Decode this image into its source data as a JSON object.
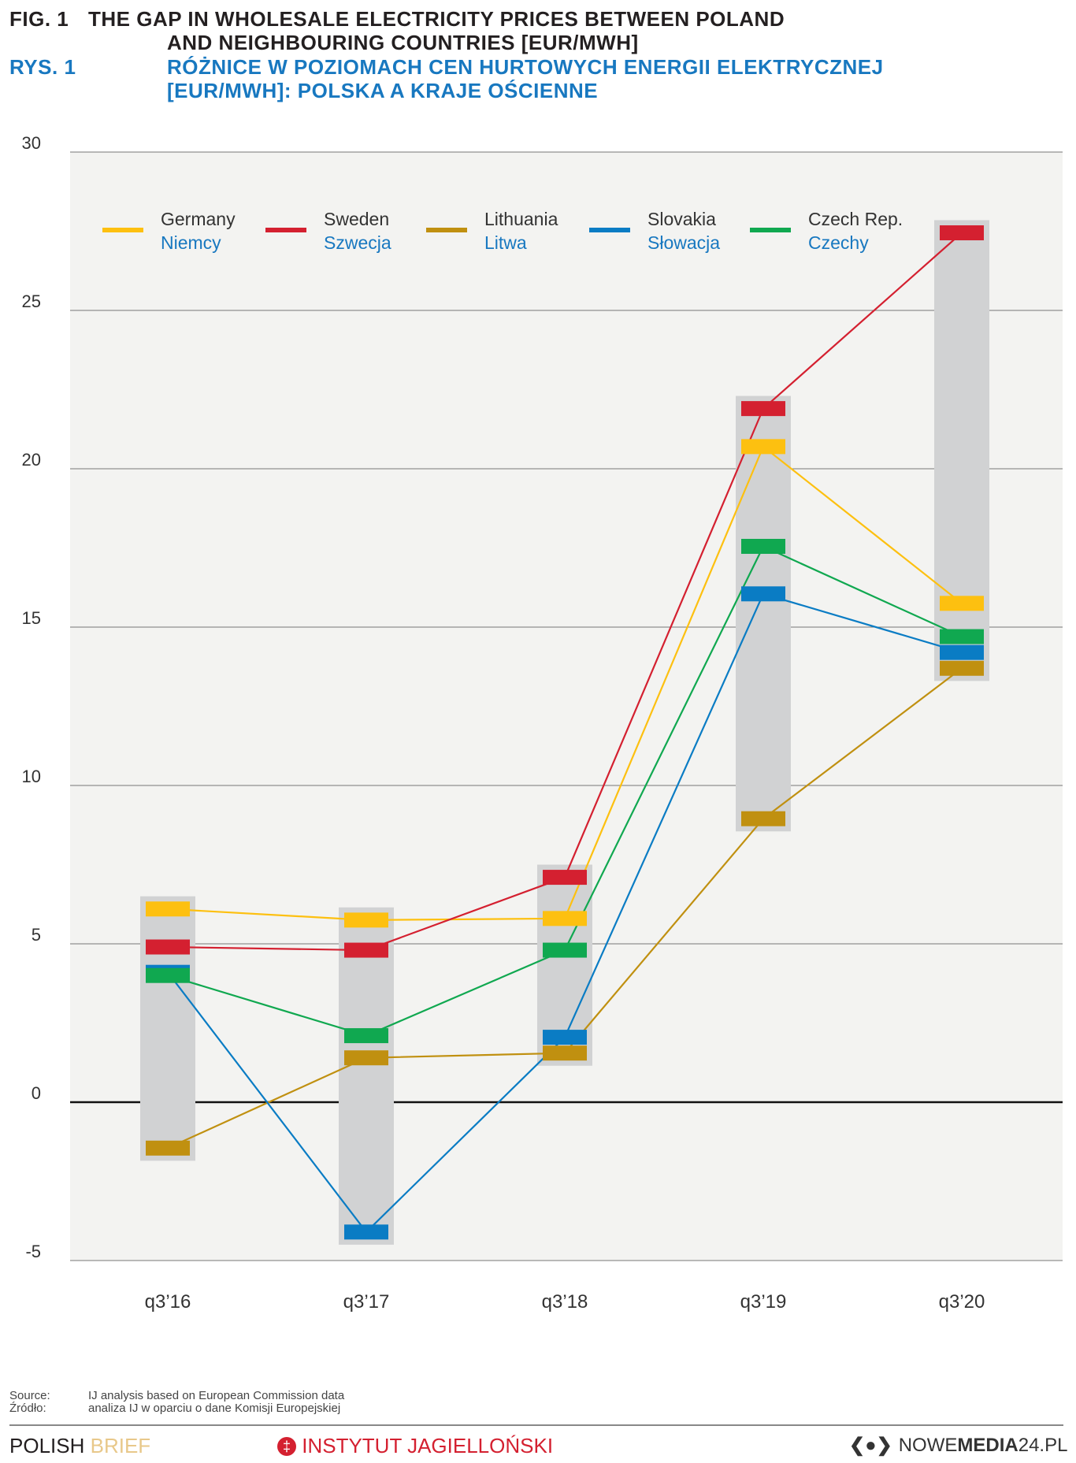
{
  "header": {
    "fig_label": "FIG. 1",
    "title_en_1": "THE GAP IN WHOLESALE ELECTRICITY PRICES BETWEEN POLAND",
    "title_en_2": "AND NEIGHBOURING COUNTRIES [EUR/MWH]",
    "rys_label": "RYS. 1",
    "title_pl_1": "RÓŻNICE W POZIOMACH CEN HURTOWYCH ENERGII ELEKTRYCZNEJ",
    "title_pl_2": "[EUR/MWH]: POLSKA A KRAJE OŚCIENNE"
  },
  "chart_data": {
    "type": "line",
    "title": "The gap in wholesale electricity prices between Poland and neighbouring countries [EUR/MWh]",
    "ylim": [
      -5,
      30
    ],
    "yticks": [
      30,
      25,
      20,
      15,
      10,
      5,
      0,
      -5
    ],
    "categories": [
      "q3’16",
      "q3’17",
      "q3’18",
      "q3’19",
      "q3’20"
    ],
    "series": [
      {
        "name": "Germany",
        "name_pl": "Niemcy",
        "color": "#fdc010",
        "values": [
          6.1,
          5.75,
          5.8,
          20.7,
          15.75
        ]
      },
      {
        "name": "Sweden",
        "name_pl": "Szwecja",
        "color": "#d42030",
        "values": [
          4.9,
          4.8,
          7.1,
          21.9,
          27.45
        ]
      },
      {
        "name": "Lithuania",
        "name_pl": "Litwa",
        "color": "#c09010",
        "values": [
          -1.45,
          1.4,
          1.55,
          8.95,
          13.7
        ]
      },
      {
        "name": "Slovakia",
        "name_pl": "Słowacja",
        "color": "#0a7cc4",
        "values": [
          4.1,
          -4.1,
          2.05,
          16.05,
          14.2
        ]
      },
      {
        "name": "Czech Rep.",
        "name_pl": "Czechy",
        "color": "#10a850",
        "values": [
          4.0,
          2.1,
          4.8,
          17.55,
          14.7
        ]
      }
    ],
    "legend_position": "top"
  },
  "source": {
    "label_en": "Source:",
    "text_en": "IJ analysis based on European Commission data",
    "label_pl": "Źródło:",
    "text_pl": "analiza IJ w oparciu o dane Komisji Europejskiej"
  },
  "footer": {
    "polish": "POLISH",
    "brief": "BRIEF",
    "instytut": "INSTYTUT JAGIELLOŃSKI",
    "nowe": "NOWE",
    "media": "MEDIA",
    "num": "24.PL"
  }
}
